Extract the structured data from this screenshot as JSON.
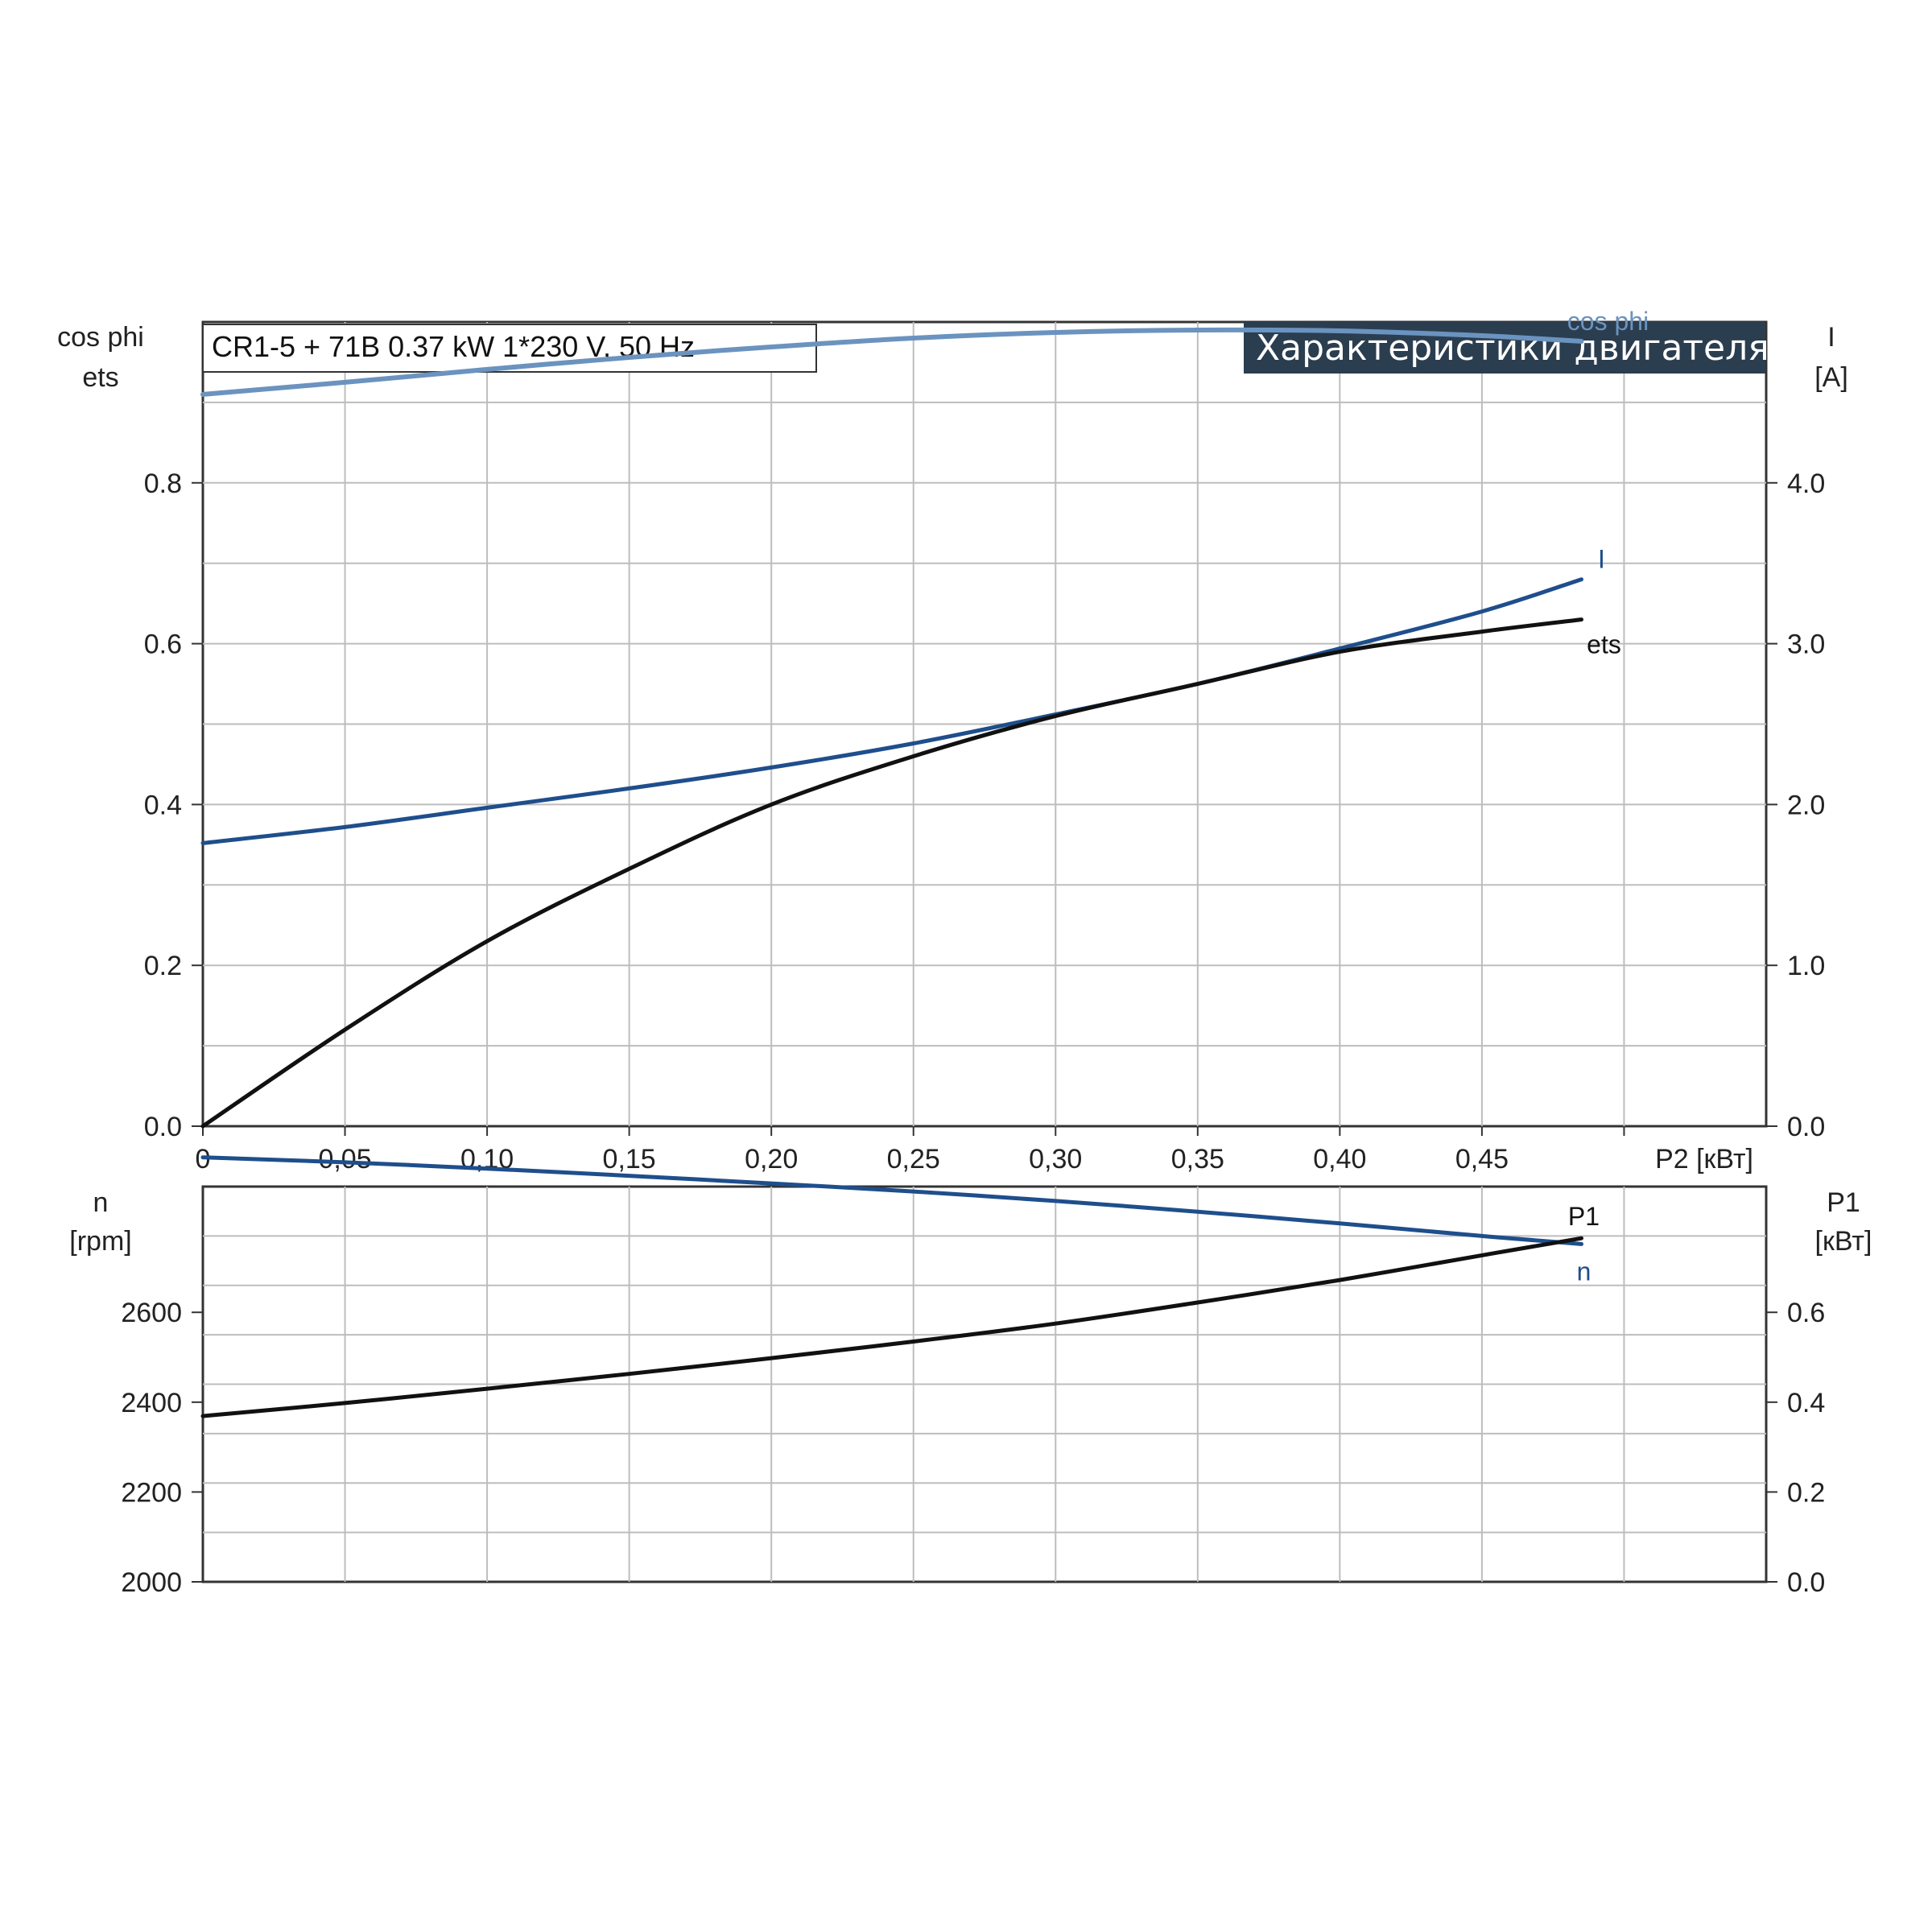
{
  "chart_data": [
    {
      "type": "line",
      "title": "Характеристики двигателя",
      "subtitle": "CR1-5 + 71B   0.37 kW   1*230 V, 50 Hz",
      "xlabel": "P2 [кВт]",
      "x_ticks": [
        "0",
        "0,05",
        "0,10",
        "0,15",
        "0,20",
        "0,25",
        "0,30",
        "0,35",
        "0,40",
        "0,45"
      ],
      "x_range": [
        0,
        0.55
      ],
      "left_axis": {
        "label_lines": [
          "cos phi",
          "ets"
        ],
        "range": [
          0,
          1.0
        ],
        "ticks": [
          "0.0",
          "0.2",
          "0.4",
          "0.6",
          "0.8"
        ]
      },
      "right_axis": {
        "label_lines": [
          "I",
          "[A]"
        ],
        "range": [
          0,
          5.0
        ],
        "ticks": [
          "0.0",
          "1.0",
          "2.0",
          "3.0",
          "4.0"
        ]
      },
      "grid": true,
      "series": [
        {
          "name": "cos phi",
          "axis": "left",
          "color": "#6b93bf",
          "x": [
            0,
            0.05,
            0.1,
            0.15,
            0.2,
            0.25,
            0.3,
            0.35,
            0.4,
            0.45,
            0.485
          ],
          "y": [
            0.91,
            0.925,
            0.941,
            0.956,
            0.969,
            0.98,
            0.987,
            0.99,
            0.989,
            0.983,
            0.976
          ]
        },
        {
          "name": "I",
          "axis": "right",
          "color": "#1f4e8c",
          "x": [
            0,
            0.05,
            0.1,
            0.15,
            0.2,
            0.25,
            0.3,
            0.35,
            0.4,
            0.45,
            0.485
          ],
          "y": [
            1.76,
            1.86,
            1.98,
            2.1,
            2.23,
            2.38,
            2.56,
            2.75,
            2.97,
            3.2,
            3.4
          ]
        },
        {
          "name": "ets",
          "axis": "left",
          "color": "#111111",
          "x": [
            0,
            0.05,
            0.1,
            0.15,
            0.2,
            0.25,
            0.3,
            0.35,
            0.4,
            0.45,
            0.485
          ],
          "y": [
            0.0,
            0.12,
            0.23,
            0.32,
            0.4,
            0.46,
            0.51,
            0.55,
            0.59,
            0.615,
            0.63
          ]
        }
      ]
    },
    {
      "type": "line",
      "xlabel": "",
      "x_range": [
        0,
        0.55
      ],
      "left_axis": {
        "label_lines": [
          "n",
          "[rpm]"
        ],
        "range": [
          2000,
          2880
        ],
        "ticks": [
          "2000",
          "2200",
          "2400",
          "2600"
        ]
      },
      "right_axis": {
        "label_lines": [
          "P1",
          "[кВт]"
        ],
        "range": [
          0,
          0.88
        ],
        "ticks": [
          "0.0",
          "0.2",
          "0.4",
          "0.6"
        ]
      },
      "grid": true,
      "series": [
        {
          "name": "n",
          "axis": "left",
          "color": "#1f4e8c",
          "x": [
            0,
            0.05,
            0.1,
            0.15,
            0.2,
            0.25,
            0.3,
            0.35,
            0.4,
            0.45,
            0.485
          ],
          "y": [
            2945,
            2934,
            2920,
            2904,
            2887,
            2869,
            2848,
            2824,
            2798,
            2770,
            2752
          ]
        },
        {
          "name": "P1",
          "axis": "right",
          "color": "#111111",
          "x": [
            0,
            0.05,
            0.1,
            0.15,
            0.2,
            0.25,
            0.3,
            0.35,
            0.4,
            0.45,
            0.485
          ],
          "y": [
            0.369,
            0.398,
            0.43,
            0.463,
            0.498,
            0.535,
            0.575,
            0.622,
            0.672,
            0.727,
            0.765
          ]
        }
      ]
    }
  ]
}
